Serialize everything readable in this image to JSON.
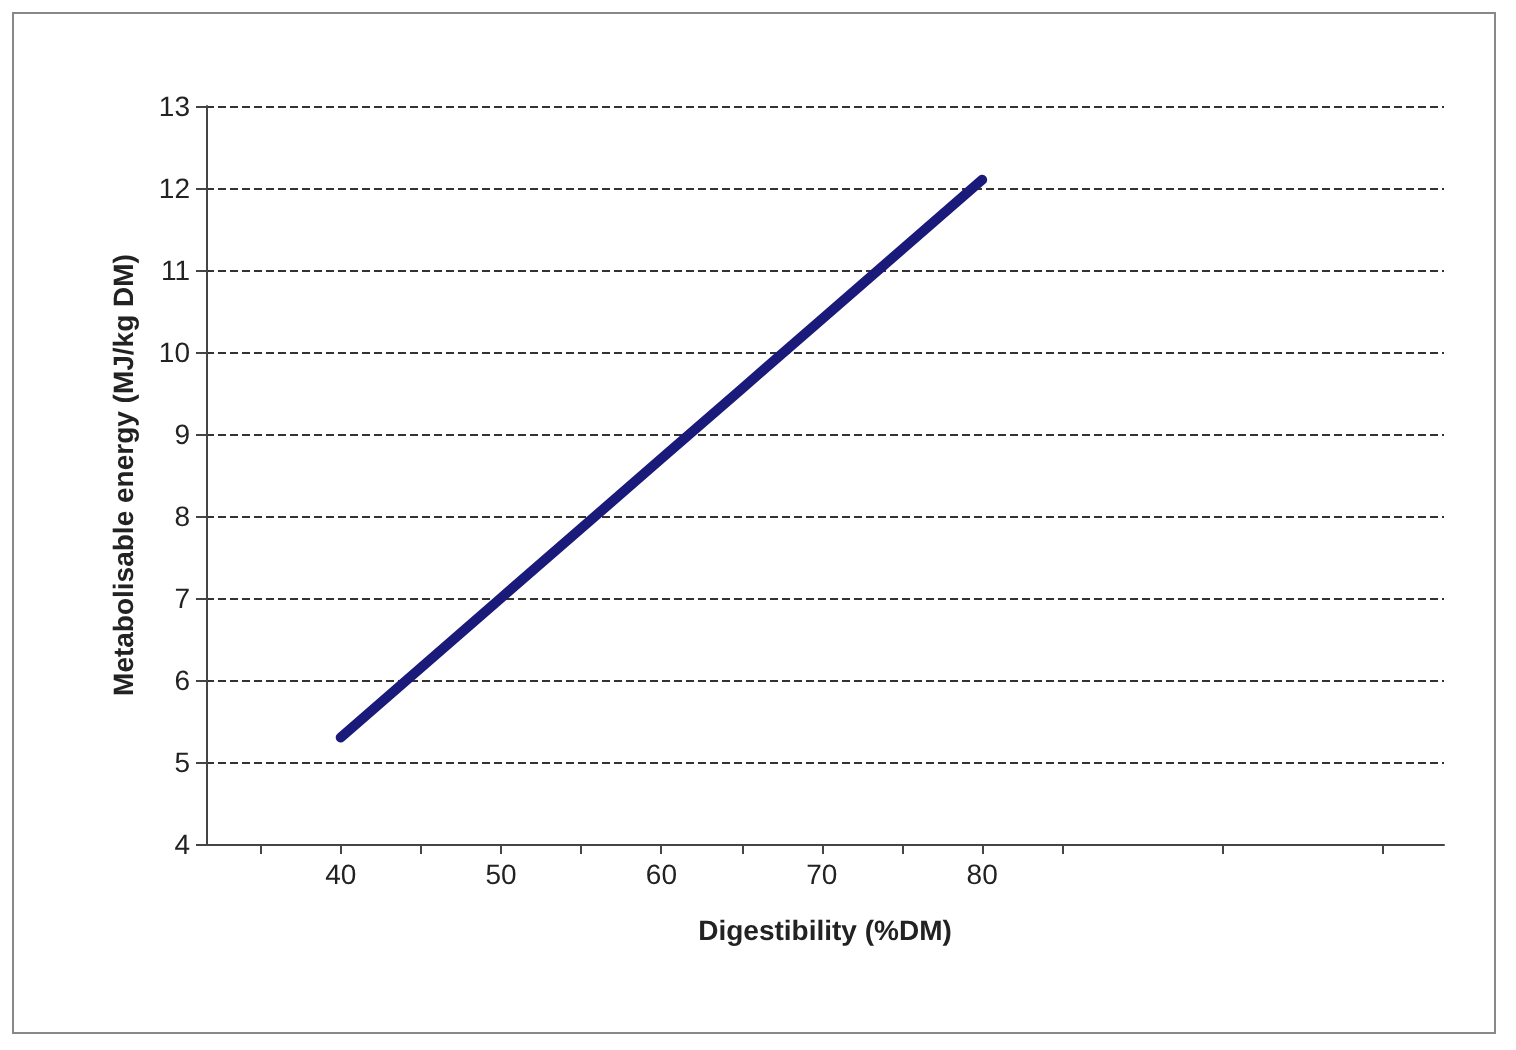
{
  "chart_data": {
    "type": "line",
    "xlabel": "Digestibility (%DM)",
    "ylabel": "Metabolisable energy (MJ/kg DM)",
    "x": [
      40,
      45,
      50,
      55,
      60,
      65,
      70,
      75,
      80
    ],
    "series": [
      {
        "color": "#1a1a7a",
        "values": [
          5.3,
          6.15,
          7.0,
          7.85,
          8.7,
          9.55,
          10.4,
          11.25,
          12.1
        ]
      }
    ],
    "xlim": [
      31.6,
      108.8
    ],
    "xticks": [
      {
        "value": 35,
        "label": null
      },
      40,
      {
        "value": 45,
        "label": null
      },
      50,
      {
        "value": 55,
        "label": null
      },
      60,
      {
        "value": 65,
        "label": null
      },
      70,
      {
        "value": 75,
        "label": null
      },
      80,
      {
        "value": 85,
        "label": null
      },
      {
        "value": 95,
        "label": null
      },
      {
        "value": 105,
        "label": null
      }
    ],
    "ylim": [
      4,
      13
    ],
    "yticks": [
      4,
      5,
      6,
      7,
      8,
      9,
      10,
      11,
      12,
      13
    ],
    "grid": "y",
    "line_style": "solid",
    "marker": "none"
  }
}
